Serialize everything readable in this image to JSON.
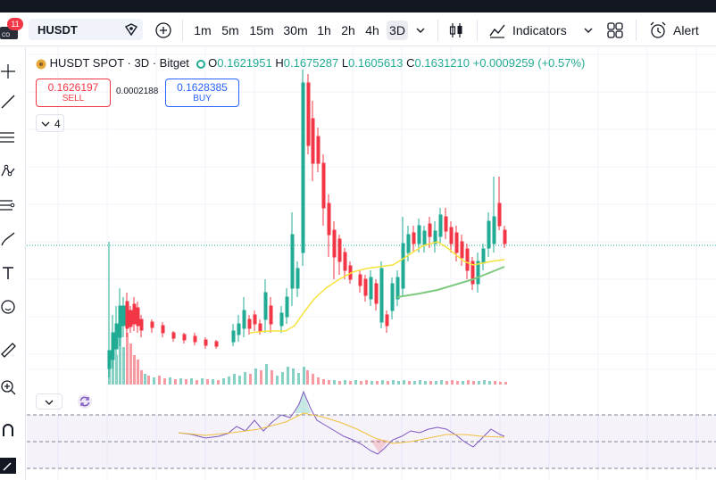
{
  "toolbar": {
    "badge_count": "11",
    "symbol": "HUSDT",
    "intervals": [
      "1m",
      "5m",
      "15m",
      "30m",
      "1h",
      "2h",
      "4h",
      "3D"
    ],
    "active_interval": "3D",
    "indicators_label": "Indicators",
    "alert_label": "Alert"
  },
  "legend": {
    "title": "HUSDT SPOT · 3D · Bitget",
    "o_label": "O",
    "o_value": "0.1621951",
    "h_label": "H",
    "h_value": "0.1675287",
    "l_label": "L",
    "l_value": "0.1605613",
    "c_label": "C",
    "c_value": "0.1631210",
    "change": "+0.0009259 (+0.57%)"
  },
  "trade": {
    "sell_price": "0.1626197",
    "sell_label": "SELL",
    "spread": "0.0002188",
    "buy_price": "0.1628385",
    "buy_label": "BUY"
  },
  "indicator_toggle": {
    "count": "4"
  },
  "colors": {
    "up": "#22ab94",
    "down": "#f23645",
    "ma_fast": "#f5e33b",
    "ma_slow": "#7ec97f",
    "rsi": "#7e57c2",
    "rsi_ma": "#f0c040"
  }
}
